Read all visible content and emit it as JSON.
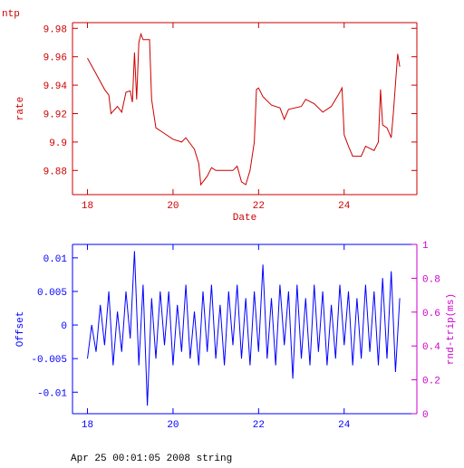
{
  "chart_data": [
    {
      "type": "line",
      "title": "ntp",
      "xlabel": "Date",
      "ylabel": "rate",
      "color": "#cc0000",
      "xlim": [
        17.65,
        25.7
      ],
      "ylim": [
        9.863,
        9.984
      ],
      "xticks": [
        18,
        20,
        22,
        24
      ],
      "yticks": [
        9.88,
        9.9,
        9.92,
        9.94,
        9.96,
        9.98
      ],
      "x": [
        18.0,
        18.2,
        18.4,
        18.5,
        18.55,
        18.7,
        18.8,
        18.9,
        19.0,
        19.05,
        19.1,
        19.15,
        19.2,
        19.25,
        19.3,
        19.45,
        19.5,
        19.6,
        19.8,
        20.0,
        20.2,
        20.3,
        20.5,
        20.6,
        20.65,
        20.8,
        20.9,
        21.0,
        21.2,
        21.4,
        21.5,
        21.6,
        21.7,
        21.8,
        21.9,
        21.95,
        22.0,
        22.1,
        22.3,
        22.5,
        22.6,
        22.7,
        23.0,
        23.1,
        23.3,
        23.5,
        23.7,
        23.9,
        23.95,
        24.0,
        24.1,
        24.2,
        24.4,
        24.5,
        24.7,
        24.8,
        24.85,
        24.9,
        25.0,
        25.1,
        25.15,
        25.25,
        25.3
      ],
      "values": [
        9.959,
        9.948,
        9.937,
        9.933,
        9.92,
        9.925,
        9.921,
        9.935,
        9.936,
        9.928,
        9.963,
        9.93,
        9.97,
        9.976,
        9.972,
        9.972,
        9.93,
        9.91,
        9.906,
        9.902,
        9.9,
        9.903,
        9.895,
        9.885,
        9.87,
        9.876,
        9.882,
        9.88,
        9.88,
        9.88,
        9.883,
        9.872,
        9.87,
        9.88,
        9.9,
        9.937,
        9.938,
        9.932,
        9.926,
        9.924,
        9.916,
        9.923,
        9.925,
        9.93,
        9.927,
        9.921,
        9.925,
        9.935,
        9.938,
        9.905,
        9.897,
        9.89,
        9.89,
        9.897,
        9.894,
        9.9,
        9.937,
        9.912,
        9.91,
        9.903,
        9.92,
        9.962,
        9.953
      ]
    },
    {
      "type": "line",
      "ylabel": "Offset",
      "y2label": "rnd-trip(ms)",
      "color": "#0000ff",
      "y2color": "#cc00cc",
      "annotation": "Apr 25 00:01:05 2008 string",
      "xlim": [
        17.65,
        25.7
      ],
      "ylim": [
        -0.0132,
        0.012
      ],
      "y2lim": [
        0,
        1
      ],
      "xticks": [
        18,
        20,
        22,
        24
      ],
      "yticks": [
        -0.01,
        -0.005,
        0,
        0.005,
        0.01
      ],
      "y2ticks": [
        0,
        0.2,
        0.4,
        0.6,
        0.8,
        1
      ],
      "x": [
        18.0,
        18.1,
        18.2,
        18.3,
        18.4,
        18.5,
        18.6,
        18.7,
        18.8,
        18.9,
        19.0,
        19.1,
        19.2,
        19.3,
        19.4,
        19.5,
        19.6,
        19.7,
        19.8,
        19.9,
        20.0,
        20.1,
        20.2,
        20.3,
        20.4,
        20.5,
        20.6,
        20.7,
        20.8,
        20.9,
        21.0,
        21.1,
        21.2,
        21.3,
        21.4,
        21.5,
        21.6,
        21.7,
        21.8,
        21.9,
        22.0,
        22.1,
        22.2,
        22.3,
        22.4,
        22.5,
        22.6,
        22.7,
        22.8,
        22.9,
        23.0,
        23.1,
        23.2,
        23.3,
        23.4,
        23.5,
        23.6,
        23.7,
        23.8,
        23.9,
        24.0,
        24.1,
        24.2,
        24.3,
        24.4,
        24.5,
        24.6,
        24.7,
        24.8,
        24.9,
        25.0,
        25.1,
        25.2,
        25.3
      ],
      "values": [
        -0.005,
        0,
        -0.004,
        0.003,
        -0.003,
        0.005,
        -0.006,
        0.002,
        -0.004,
        0.005,
        -0.002,
        0.011,
        -0.006,
        0.006,
        -0.012,
        0.004,
        -0.005,
        0.005,
        -0.003,
        0.005,
        -0.006,
        0.003,
        -0.004,
        0.006,
        -0.005,
        0.002,
        -0.006,
        0.005,
        -0.004,
        0.006,
        -0.005,
        0.003,
        -0.006,
        0.005,
        -0.003,
        0.006,
        -0.005,
        0.004,
        -0.006,
        0.005,
        -0.004,
        0.009,
        -0.005,
        0.004,
        -0.006,
        0.006,
        -0.003,
        0.005,
        -0.008,
        0.006,
        -0.005,
        0.004,
        -0.006,
        0.006,
        -0.004,
        0.005,
        -0.006,
        0.003,
        -0.005,
        0.006,
        -0.003,
        0.005,
        -0.006,
        0.004,
        -0.005,
        0.006,
        -0.004,
        0.005,
        -0.006,
        0.007,
        -0.005,
        0.008,
        -0.007,
        0.004
      ]
    }
  ]
}
